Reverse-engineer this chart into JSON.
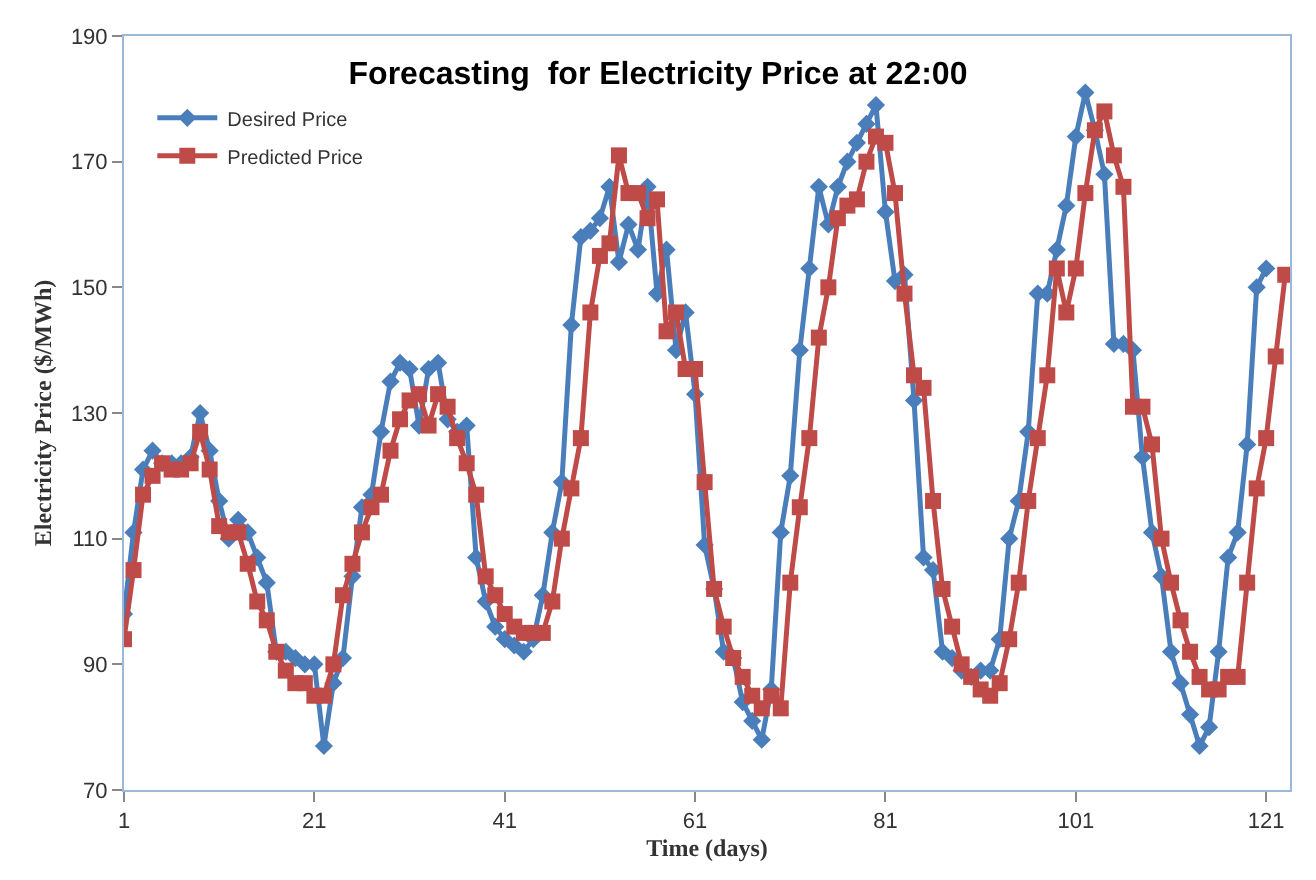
{
  "chart_data": {
    "type": "line",
    "title": "Forecasting  for Electricity Price at 22:00",
    "xlabel": "Time (days)",
    "ylabel": "Electricity Price ($/MWh)",
    "xlim": [
      1,
      123.5
    ],
    "xticks": [
      1,
      21,
      41,
      61,
      81,
      101,
      121
    ],
    "ylim": [
      70,
      190
    ],
    "yticks": [
      70,
      90,
      110,
      130,
      150,
      170,
      190
    ],
    "legend": "top left",
    "line_style": "solid",
    "series": [
      {
        "name": "Desired Price",
        "color": "#4a7ebb",
        "marker": "diamond",
        "x": [
          1,
          2,
          3,
          4,
          5,
          6,
          7,
          8,
          9,
          10,
          11,
          12,
          13,
          14,
          15,
          16,
          17,
          18,
          19,
          20,
          21,
          22,
          23,
          24,
          25,
          26,
          27,
          28,
          29,
          30,
          31,
          32,
          33,
          34,
          35,
          36,
          37,
          38,
          39,
          40,
          41,
          42,
          43,
          44,
          45,
          46,
          47,
          48,
          49,
          50,
          51,
          52,
          53,
          54,
          55,
          56,
          57,
          58,
          59,
          60,
          61,
          62,
          63,
          64,
          65,
          66,
          67,
          68,
          69,
          70,
          71,
          72,
          73,
          74,
          75,
          76,
          77,
          78,
          79,
          80,
          81,
          82,
          83,
          84,
          85,
          86,
          87,
          88,
          89,
          90,
          91,
          92,
          93,
          94,
          95,
          96,
          97,
          98,
          99,
          100,
          101,
          102,
          103,
          104,
          105,
          106,
          107,
          108,
          109,
          110,
          111,
          112,
          113,
          114,
          115,
          116,
          117,
          118,
          119,
          120,
          121
        ],
        "values": [
          98,
          111,
          121,
          124,
          122,
          122,
          122,
          123,
          130,
          124,
          116,
          110,
          113,
          111,
          107,
          103,
          92,
          92,
          91,
          90,
          90,
          77,
          87,
          91,
          104,
          115,
          117,
          127,
          135,
          138,
          137,
          128,
          137,
          138,
          129,
          127,
          128,
          107,
          100,
          96,
          94,
          93,
          92,
          94,
          101,
          111,
          119,
          144,
          158,
          159,
          161,
          166,
          154,
          160,
          156,
          166,
          149,
          156,
          140,
          146,
          133,
          109,
          102,
          92,
          91,
          84,
          81,
          78,
          86,
          111,
          120,
          140,
          153,
          166,
          160,
          166,
          170,
          173,
          176,
          179,
          162,
          151,
          152,
          132,
          107,
          105,
          92,
          91,
          89,
          88,
          89,
          89,
          94,
          110,
          116,
          127,
          149,
          149,
          156,
          163,
          174,
          181,
          175,
          168,
          141,
          141,
          140,
          123,
          111,
          104,
          92,
          87,
          82,
          77,
          80,
          92,
          107,
          111,
          125,
          150,
          153
        ]
      },
      {
        "name": "Predicted Price",
        "color": "#be4b48",
        "marker": "square",
        "x": [
          1,
          2,
          3,
          4,
          5,
          6,
          7,
          8,
          9,
          10,
          11,
          12,
          13,
          14,
          15,
          16,
          17,
          18,
          19,
          20,
          21,
          22,
          23,
          24,
          25,
          26,
          27,
          28,
          29,
          30,
          31,
          32,
          33,
          34,
          35,
          36,
          37,
          38,
          39,
          40,
          41,
          42,
          43,
          44,
          45,
          46,
          47,
          48,
          49,
          50,
          51,
          52,
          53,
          54,
          55,
          56,
          57,
          58,
          59,
          60,
          61,
          62,
          63,
          64,
          65,
          66,
          67,
          68,
          69,
          70,
          71,
          72,
          73,
          74,
          75,
          76,
          77,
          78,
          79,
          80,
          81,
          82,
          83,
          84,
          85,
          86,
          87,
          88,
          89,
          90,
          91,
          92,
          93,
          94,
          95,
          96,
          97,
          98,
          99,
          100,
          101,
          102,
          103,
          104,
          105,
          106,
          107,
          108,
          109,
          110,
          111,
          112,
          113,
          114,
          115,
          116,
          117,
          118,
          119,
          120,
          121,
          122,
          123
        ],
        "values": [
          94,
          105,
          117,
          120,
          122,
          121,
          121,
          122,
          127,
          121,
          112,
          111,
          111,
          106,
          100,
          97,
          92,
          89,
          87,
          87,
          85,
          85,
          90,
          101,
          106,
          111,
          115,
          117,
          124,
          129,
          132,
          133,
          128,
          133,
          131,
          126,
          122,
          117,
          104,
          101,
          98,
          96,
          95,
          95,
          95,
          100,
          110,
          118,
          126,
          146,
          155,
          157,
          171,
          165,
          165,
          161,
          164,
          143,
          146,
          137,
          137,
          119,
          102,
          96,
          91,
          88,
          85,
          83,
          85,
          83,
          103,
          115,
          126,
          142,
          150,
          161,
          163,
          164,
          170,
          174,
          173,
          165,
          149,
          136,
          134,
          116,
          102,
          96,
          90,
          88,
          86,
          85,
          87,
          94,
          103,
          116,
          126,
          136,
          153,
          146,
          153,
          165,
          175,
          178,
          171,
          166,
          131,
          131,
          125,
          110,
          103,
          97,
          92,
          88,
          86,
          86,
          88,
          88,
          103,
          118,
          126,
          139,
          152
        ]
      }
    ]
  }
}
